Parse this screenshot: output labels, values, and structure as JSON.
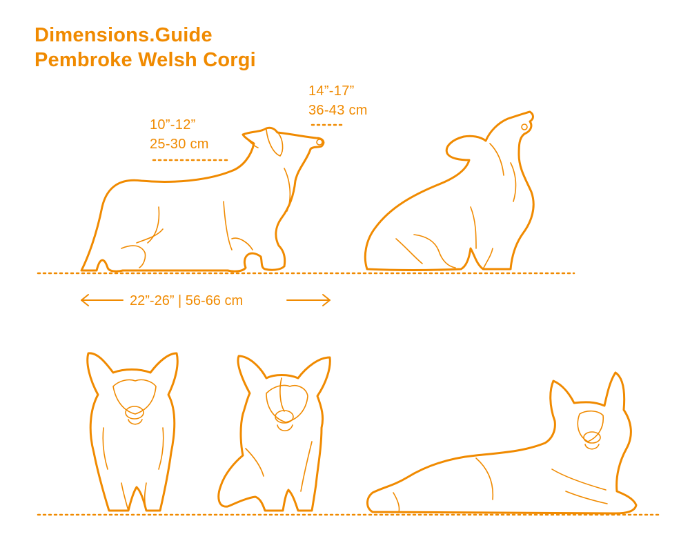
{
  "header": {
    "brand": "Dimensions.Guide",
    "subject": "Pembroke Welsh Corgi"
  },
  "dimensions": {
    "withers_height": {
      "imperial": "10”-12”",
      "metric": "25-30 cm"
    },
    "head_height": {
      "imperial": "14”-17”",
      "metric": "36-43 cm"
    },
    "length": {
      "label": "22”-26” | 56-66 cm"
    }
  },
  "colors": {
    "accent": "#f08a00",
    "background": "#ffffff"
  },
  "figures": [
    {
      "view": "side-standing",
      "icon": "corgi-side-standing-icon"
    },
    {
      "view": "side-sitting-howling",
      "icon": "corgi-sitting-howling-icon"
    },
    {
      "view": "front-standing",
      "icon": "corgi-front-standing-icon"
    },
    {
      "view": "front-sitting",
      "icon": "corgi-front-sitting-icon"
    },
    {
      "view": "lying-down",
      "icon": "corgi-lying-icon"
    }
  ]
}
